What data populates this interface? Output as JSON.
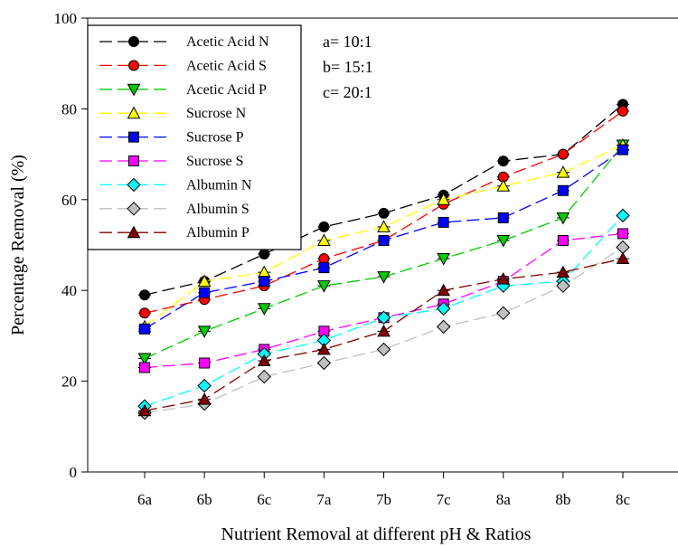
{
  "chart_data": {
    "type": "line",
    "title": "",
    "xlabel": "Nutrient Removal at different pH & Ratios",
    "ylabel": "Percentage Removal (%)",
    "categories": [
      "6a",
      "6b",
      "6c",
      "7a",
      "7b",
      "7c",
      "8a",
      "8b",
      "8c"
    ],
    "ylim": [
      0,
      100
    ],
    "yticks": [
      0,
      20,
      40,
      60,
      80,
      100
    ],
    "grid": false,
    "legend_position": "top-left",
    "annotations": [
      "a= 10:1",
      "b= 15:1",
      "c= 20:1"
    ],
    "series": [
      {
        "name": "Acetic Acid N",
        "color": "#000000",
        "marker": "circle",
        "values": [
          39,
          42,
          48,
          54,
          57,
          61,
          68.5,
          70,
          81
        ]
      },
      {
        "name": "Acetic Acid S",
        "color": "#ff0000",
        "marker": "circle",
        "values": [
          35,
          38,
          41,
          47,
          51,
          59,
          65,
          70,
          79.5
        ]
      },
      {
        "name": "Acetic Acid P",
        "color": "#00cc00",
        "marker": "triangle-down",
        "values": [
          25,
          31,
          36,
          41,
          43,
          47,
          51,
          56,
          72
        ]
      },
      {
        "name": "Sucrose N",
        "color": "#ffff00",
        "marker": "triangle-up",
        "values": [
          32,
          42,
          44,
          51,
          54,
          60,
          63,
          66,
          72
        ]
      },
      {
        "name": "Sucrose P",
        "color": "#0000ff",
        "marker": "square",
        "values": [
          31.5,
          39.5,
          42,
          45,
          51,
          55,
          56,
          62,
          71
        ]
      },
      {
        "name": "Sucrose S",
        "color": "#ff00ff",
        "marker": "square",
        "values": [
          23,
          24,
          27,
          31,
          34,
          37,
          42,
          51,
          52.5
        ]
      },
      {
        "name": "Albumin N",
        "color": "#00ffff",
        "marker": "diamond",
        "values": [
          14.5,
          19,
          26,
          29,
          34,
          36,
          41,
          42,
          56.5
        ]
      },
      {
        "name": "Albumin S",
        "color": "#c0c0c0",
        "marker": "diamond",
        "values": [
          13,
          15,
          21,
          24,
          27,
          32,
          35,
          41,
          49.5
        ]
      },
      {
        "name": "Albumin P",
        "color": "#800000",
        "marker": "triangle-up",
        "values": [
          13.5,
          16,
          24.5,
          27,
          31,
          40,
          42.5,
          44,
          47
        ]
      }
    ]
  }
}
